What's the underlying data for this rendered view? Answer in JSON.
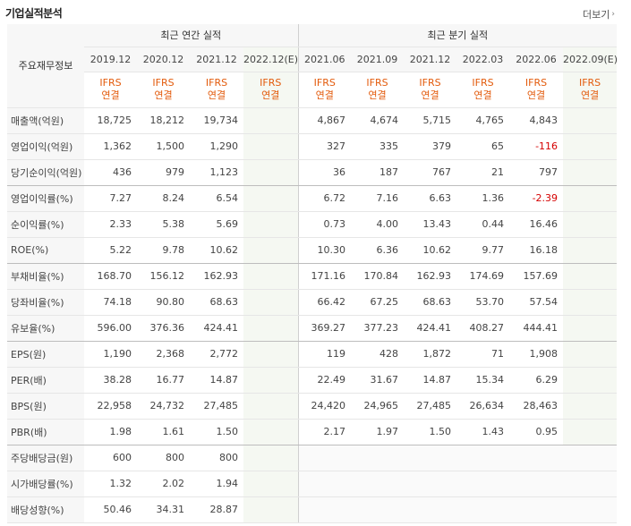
{
  "page": {
    "title": "기업실적분석",
    "more_label": "더보기",
    "more_icon": "chevron-right-icon"
  },
  "table": {
    "row_header": "주요재무정보",
    "groups": {
      "annual": "최근 연간 실적",
      "quarterly": "최근 분기 실적"
    },
    "periods": [
      "2019.12",
      "2020.12",
      "2021.12",
      "2022.12(E)",
      "2021.06",
      "2021.09",
      "2021.12",
      "2022.03",
      "2022.06",
      "2022.09(E)"
    ],
    "standard": {
      "line1": "IFRS",
      "line2": "연결"
    },
    "rows": [
      {
        "label": "매출액(억원)",
        "values": [
          "18,725",
          "18,212",
          "19,734",
          "",
          "4,867",
          "4,674",
          "5,715",
          "4,765",
          "4,843",
          ""
        ]
      },
      {
        "label": "영업이익(억원)",
        "values": [
          "1,362",
          "1,500",
          "1,290",
          "",
          "327",
          "335",
          "379",
          "65",
          "-116",
          ""
        ]
      },
      {
        "label": "당기순이익(억원)",
        "values": [
          "436",
          "979",
          "1,123",
          "",
          "36",
          "187",
          "767",
          "21",
          "797",
          ""
        ]
      },
      {
        "label": "영업이익률(%)",
        "values": [
          "7.27",
          "8.24",
          "6.54",
          "",
          "6.72",
          "7.16",
          "6.63",
          "1.36",
          "-2.39",
          ""
        ]
      },
      {
        "label": "순이익률(%)",
        "values": [
          "2.33",
          "5.38",
          "5.69",
          "",
          "0.73",
          "4.00",
          "13.43",
          "0.44",
          "16.46",
          ""
        ]
      },
      {
        "label": "ROE(%)",
        "values": [
          "5.22",
          "9.78",
          "10.62",
          "",
          "10.30",
          "6.36",
          "10.62",
          "9.77",
          "16.18",
          ""
        ]
      },
      {
        "label": "부채비율(%)",
        "values": [
          "168.70",
          "156.12",
          "162.93",
          "",
          "171.16",
          "170.84",
          "162.93",
          "174.69",
          "157.69",
          ""
        ]
      },
      {
        "label": "당좌비율(%)",
        "values": [
          "74.18",
          "90.80",
          "68.63",
          "",
          "66.42",
          "67.25",
          "68.63",
          "53.70",
          "57.54",
          ""
        ]
      },
      {
        "label": "유보율(%)",
        "values": [
          "596.00",
          "376.36",
          "424.41",
          "",
          "369.27",
          "377.23",
          "424.41",
          "408.27",
          "444.41",
          ""
        ]
      },
      {
        "label": "EPS(원)",
        "values": [
          "1,190",
          "2,368",
          "2,772",
          "",
          "119",
          "428",
          "1,872",
          "71",
          "1,908",
          ""
        ]
      },
      {
        "label": "PER(배)",
        "values": [
          "38.28",
          "16.77",
          "14.87",
          "",
          "22.49",
          "31.67",
          "14.87",
          "15.34",
          "6.29",
          ""
        ]
      },
      {
        "label": "BPS(원)",
        "values": [
          "22,958",
          "24,732",
          "27,485",
          "",
          "24,420",
          "24,965",
          "27,485",
          "26,634",
          "28,463",
          ""
        ]
      },
      {
        "label": "PBR(배)",
        "values": [
          "1.98",
          "1.61",
          "1.50",
          "",
          "2.17",
          "1.97",
          "1.50",
          "1.43",
          "0.95",
          ""
        ]
      },
      {
        "label": "주당배당금(원)",
        "values": [
          "600",
          "800",
          "800",
          "",
          "",
          "",
          "",
          "",
          "",
          ""
        ]
      },
      {
        "label": "시가배당률(%)",
        "values": [
          "1.32",
          "2.02",
          "1.94",
          "",
          "",
          "",
          "",
          "",
          "",
          ""
        ]
      },
      {
        "label": "배당성향(%)",
        "values": [
          "50.46",
          "34.31",
          "28.87",
          "",
          "",
          "",
          "",
          "",
          "",
          ""
        ]
      }
    ]
  }
}
